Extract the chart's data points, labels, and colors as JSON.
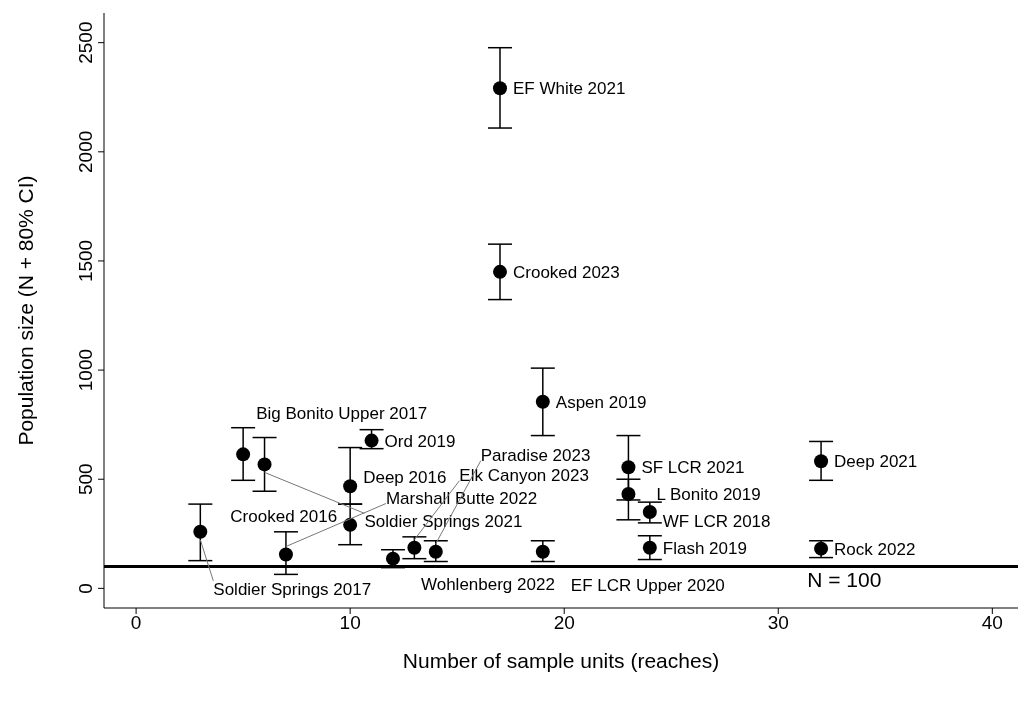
{
  "chart_data": {
    "type": "scatter",
    "xlabel": "Number of sample units (reaches)",
    "ylabel": "Population size (N + 80% CI)",
    "x": [
      3,
      5,
      6,
      7,
      10,
      10,
      11,
      12,
      13,
      14,
      17,
      17,
      19,
      19,
      23,
      23,
      24,
      24,
      32,
      32
    ],
    "values": [
      259,
      614,
      568,
      155,
      468,
      291,
      677,
      136,
      186,
      168,
      2291,
      1450,
      855,
      168,
      555,
      432,
      350,
      186,
      582,
      182
    ],
    "errors": [
      [
        127,
        386
      ],
      [
        495,
        736
      ],
      [
        445,
        691
      ],
      [
        64,
        259
      ],
      [
        386,
        645
      ],
      [
        200,
        386
      ],
      [
        640,
        727
      ],
      [
        95,
        177
      ],
      [
        136,
        236
      ],
      [
        123,
        218
      ],
      [
        2109,
        2477
      ],
      [
        1323,
        1577
      ],
      [
        700,
        1009
      ],
      [
        123,
        218
      ],
      [
        405,
        700
      ],
      [
        314,
        500
      ],
      [
        300,
        395
      ],
      [
        132,
        241
      ],
      [
        495,
        673
      ],
      [
        141,
        218
      ]
    ],
    "color": "#000000",
    "marker": "circle",
    "xlim": [
      -1.5,
      41.2
    ],
    "ylim": [
      -90,
      2636
    ],
    "xticks": [
      0,
      10,
      20,
      30,
      40
    ],
    "yticks": [
      0,
      500,
      1000,
      1500,
      2000,
      2500
    ],
    "grid": false,
    "ref_lines": [
      {
        "axis": "y",
        "value": 100,
        "label": "N = 100",
        "color": "#000000"
      }
    ],
    "annotations": [
      {
        "text": "Soldier Springs 2017",
        "x": 3,
        "y": 259
      },
      {
        "text": "Big Bonito Upper 2017",
        "x": 5,
        "y": 614
      },
      {
        "text": "Soldier Springs 2021",
        "x": 6,
        "y": 568
      },
      {
        "text": "Marshall Butte 2022",
        "x": 7,
        "y": 155
      },
      {
        "text": "Deep 2016",
        "x": 10,
        "y": 468
      },
      {
        "text": "Crooked 2016",
        "x": 10,
        "y": 291
      },
      {
        "text": "Ord 2019",
        "x": 11,
        "y": 677
      },
      {
        "text": "Wohlenberg 2022",
        "x": 12,
        "y": 136
      },
      {
        "text": "Elk Canyon 2023",
        "x": 13,
        "y": 186
      },
      {
        "text": "Paradise 2023",
        "x": 14,
        "y": 168
      },
      {
        "text": "EF White 2021",
        "x": 17,
        "y": 2291
      },
      {
        "text": "Crooked 2023",
        "x": 17,
        "y": 1450
      },
      {
        "text": "Aspen 2019",
        "x": 19,
        "y": 855
      },
      {
        "text": "EF LCR Upper 2020",
        "x": 19,
        "y": 168
      },
      {
        "text": "SF LCR 2021",
        "x": 23,
        "y": 555
      },
      {
        "text": "L Bonito 2019",
        "x": 23,
        "y": 432
      },
      {
        "text": "WF LCR 2018",
        "x": 24,
        "y": 350
      },
      {
        "text": "Flash 2019",
        "x": 24,
        "y": 186
      },
      {
        "text": "Deep 2021",
        "x": 32,
        "y": 582
      },
      {
        "text": "Rock 2022",
        "x": 32,
        "y": 182
      }
    ]
  }
}
